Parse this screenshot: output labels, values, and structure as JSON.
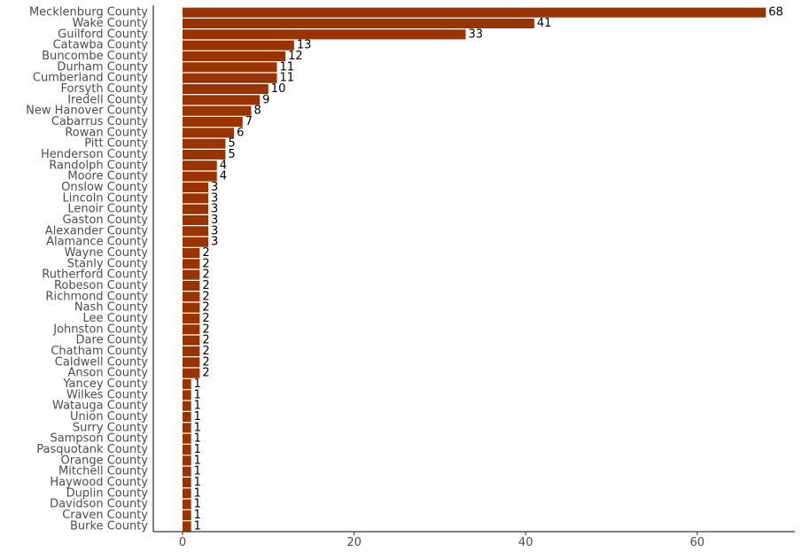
{
  "chart_data": {
    "type": "bar",
    "orientation": "horizontal",
    "title": "",
    "xlabel": "",
    "ylabel": "",
    "xlim": [
      0,
      70
    ],
    "xticks": [
      0,
      20,
      40,
      60
    ],
    "grid": false,
    "bar_color": "#993300",
    "categories": [
      "Mecklenburg County",
      "Wake County",
      "Guilford County",
      "Catawba County",
      "Buncombe County",
      "Durham County",
      "Cumberland County",
      "Forsyth County",
      "Iredell County",
      "New Hanover County",
      "Cabarrus County",
      "Rowan County",
      "Pitt County",
      "Henderson County",
      "Randolph County",
      "Moore County",
      "Onslow County",
      "Lincoln County",
      "Lenoir County",
      "Gaston County",
      "Alexander County",
      "Alamance County",
      "Wayne County",
      "Stanly County",
      "Rutherford County",
      "Robeson County",
      "Richmond County",
      "Nash County",
      "Lee County",
      "Johnston County",
      "Dare County",
      "Chatham County",
      "Caldwell County",
      "Anson County",
      "Yancey County",
      "Wilkes County",
      "Watauga County",
      "Union County",
      "Surry County",
      "Sampson County",
      "Pasquotank County",
      "Orange County",
      "Mitchell County",
      "Haywood County",
      "Duplin County",
      "Davidson County",
      "Craven County",
      "Burke County"
    ],
    "values": [
      68,
      41,
      33,
      13,
      12,
      11,
      11,
      10,
      9,
      8,
      7,
      6,
      5,
      5,
      4,
      4,
      3,
      3,
      3,
      3,
      3,
      3,
      2,
      2,
      2,
      2,
      2,
      2,
      2,
      2,
      2,
      2,
      2,
      2,
      1,
      1,
      1,
      1,
      1,
      1,
      1,
      1,
      1,
      1,
      1,
      1,
      1,
      1
    ]
  }
}
